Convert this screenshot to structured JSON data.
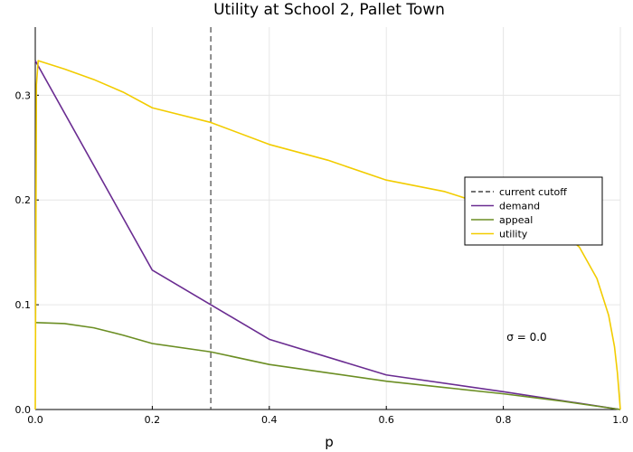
{
  "chart_data": {
    "type": "line",
    "title": "Utility at School 2, Pallet Town",
    "xlabel": "p",
    "ylabel": "",
    "xlim": [
      0,
      1
    ],
    "ylim": [
      0,
      0.365
    ],
    "xticks": [
      0,
      0.2,
      0.4,
      0.6,
      0.8,
      1.0
    ],
    "xtick_labels": [
      "0.0",
      "0.2",
      "0.4",
      "0.6",
      "0.8",
      "1.0"
    ],
    "yticks": [
      0,
      0.1,
      0.2,
      0.3
    ],
    "ytick_labels": [
      "0.0",
      "0.1",
      "0.2",
      "0.3"
    ],
    "grid": true,
    "legend_position": "right",
    "vline": {
      "name": "current cutoff",
      "x": 0.3,
      "color": "#444444",
      "dash": true
    },
    "series": [
      {
        "name": "demand",
        "color": "#6a2c91",
        "x": [
          0.0,
          0.2,
          0.4,
          0.6,
          0.8,
          1.0
        ],
        "y": [
          0.333,
          0.133,
          0.067,
          0.033,
          0.017,
          0.0
        ]
      },
      {
        "name": "appeal",
        "color": "#6b8e23",
        "x": [
          0.0,
          0.05,
          0.1,
          0.15,
          0.2,
          0.3,
          0.4,
          0.5,
          0.6,
          0.7,
          0.8,
          0.9,
          1.0
        ],
        "y": [
          0.083,
          0.082,
          0.078,
          0.071,
          0.063,
          0.055,
          0.043,
          0.035,
          0.027,
          0.021,
          0.015,
          0.008,
          0.0
        ]
      },
      {
        "name": "utility",
        "color": "#f2cc00",
        "x": [
          0.0,
          0.002,
          0.005,
          0.05,
          0.1,
          0.15,
          0.2,
          0.3,
          0.4,
          0.5,
          0.6,
          0.7,
          0.8,
          0.85,
          0.9,
          0.93,
          0.96,
          0.98,
          0.99,
          0.995,
          1.0
        ],
        "y": [
          0.0,
          0.31,
          0.333,
          0.325,
          0.315,
          0.303,
          0.288,
          0.274,
          0.253,
          0.238,
          0.219,
          0.208,
          0.19,
          0.182,
          0.17,
          0.155,
          0.125,
          0.09,
          0.06,
          0.035,
          0.0
        ]
      }
    ],
    "annotations": [
      {
        "text": "σ = 0.0",
        "x": 0.84,
        "y": 0.069
      }
    ]
  }
}
